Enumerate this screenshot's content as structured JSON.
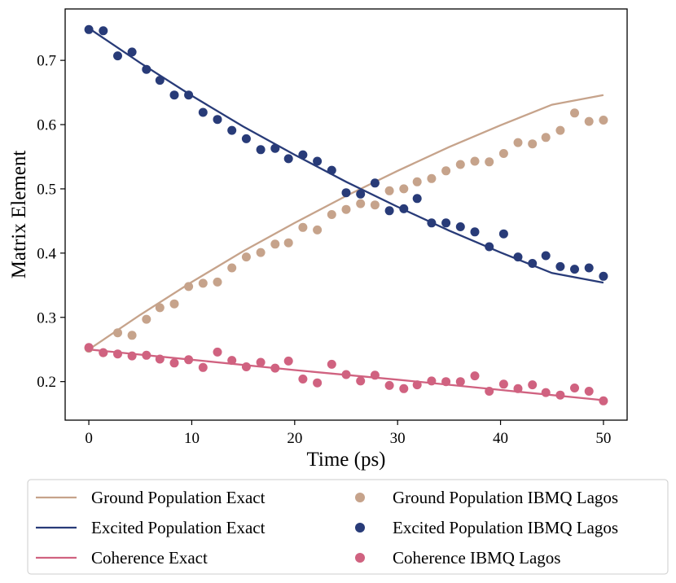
{
  "chart_data": {
    "type": "line",
    "title": "",
    "xlabel": "Time (ps)",
    "ylabel": "Matrix Element",
    "xlim": [
      -2.3,
      52.3
    ],
    "ylim": [
      0.14,
      0.78
    ],
    "xticks": [
      0,
      10,
      20,
      30,
      40,
      50
    ],
    "yticks": [
      0.2,
      0.3,
      0.4,
      0.5,
      0.6,
      0.7
    ],
    "xtick_labels": [
      "0",
      "10",
      "20",
      "30",
      "40",
      "50"
    ],
    "ytick_labels": [
      "0.2",
      "0.3",
      "0.4",
      "0.5",
      "0.6",
      "0.7"
    ],
    "grid": false,
    "legend_position": "below-plot, 2 columns",
    "colors": {
      "ground": "#c6a38b",
      "excited": "#283b78",
      "coherence": "#d06280"
    },
    "lines": [
      {
        "name": "Ground Population Exact",
        "color": "#c6a38b",
        "x": [
          0,
          5,
          10,
          15,
          20,
          25,
          30,
          35,
          40,
          45,
          50
        ],
        "y": [
          0.25,
          0.304,
          0.355,
          0.403,
          0.447,
          0.489,
          0.528,
          0.565,
          0.599,
          0.631,
          0.646
        ]
      },
      {
        "name": "Excited Population Exact",
        "color": "#283b78",
        "x": [
          0,
          5,
          10,
          15,
          20,
          25,
          30,
          35,
          40,
          45,
          50
        ],
        "y": [
          0.75,
          0.696,
          0.645,
          0.597,
          0.553,
          0.511,
          0.472,
          0.435,
          0.401,
          0.369,
          0.354
        ]
      },
      {
        "name": "Coherence Exact",
        "color": "#d06280",
        "x": [
          0,
          10,
          20,
          30,
          40,
          50
        ],
        "y": [
          0.25,
          0.234,
          0.218,
          0.203,
          0.187,
          0.171
        ]
      }
    ],
    "scatter": [
      {
        "name": "Ground Population IBMQ Lagos",
        "color": "#c6a38b",
        "x": [
          0,
          1.4,
          2.8,
          4.2,
          5.6,
          6.9,
          8.3,
          9.7,
          11.1,
          12.5,
          13.9,
          15.3,
          16.7,
          18.1,
          19.4,
          20.8,
          22.2,
          23.6,
          25,
          26.4,
          27.8,
          29.2,
          30.6,
          31.9,
          33.3,
          34.7,
          36.1,
          37.5,
          38.9,
          40.3,
          41.7,
          43.1,
          44.4,
          45.8,
          47.2,
          48.6,
          50
        ],
        "y": [
          0.252,
          0.245,
          0.276,
          0.272,
          0.297,
          0.315,
          0.321,
          0.348,
          0.353,
          0.355,
          0.377,
          0.394,
          0.401,
          0.414,
          0.416,
          0.44,
          0.436,
          0.46,
          0.468,
          0.477,
          0.475,
          0.497,
          0.5,
          0.511,
          0.516,
          0.528,
          0.538,
          0.543,
          0.542,
          0.555,
          0.572,
          0.57,
          0.58,
          0.591,
          0.618,
          0.605,
          0.607
        ]
      },
      {
        "name": "Excited Population IBMQ Lagos",
        "color": "#283b78",
        "x": [
          0,
          1.4,
          2.8,
          4.2,
          5.6,
          6.9,
          8.3,
          9.7,
          11.1,
          12.5,
          13.9,
          15.3,
          16.7,
          18.1,
          19.4,
          20.8,
          22.2,
          23.6,
          25,
          26.4,
          27.8,
          29.2,
          30.6,
          31.9,
          33.3,
          34.7,
          36.1,
          37.5,
          38.9,
          40.3,
          41.7,
          43.1,
          44.4,
          45.8,
          47.2,
          48.6,
          50
        ],
        "y": [
          0.748,
          0.746,
          0.707,
          0.713,
          0.686,
          0.669,
          0.646,
          0.646,
          0.619,
          0.608,
          0.591,
          0.578,
          0.561,
          0.563,
          0.547,
          0.553,
          0.543,
          0.529,
          0.494,
          0.492,
          0.509,
          0.466,
          0.469,
          0.485,
          0.447,
          0.447,
          0.441,
          0.433,
          0.41,
          0.43,
          0.394,
          0.384,
          0.396,
          0.379,
          0.375,
          0.377,
          0.364
        ]
      },
      {
        "name": "Coherence IBMQ Lagos",
        "color": "#d06280",
        "x": [
          0,
          1.4,
          2.8,
          4.2,
          5.6,
          6.9,
          8.3,
          9.7,
          11.1,
          12.5,
          13.9,
          15.3,
          16.7,
          18.1,
          19.4,
          20.8,
          22.2,
          23.6,
          25,
          26.4,
          27.8,
          29.2,
          30.6,
          31.9,
          33.3,
          34.7,
          36.1,
          37.5,
          38.9,
          40.3,
          41.7,
          43.1,
          44.4,
          45.8,
          47.2,
          48.6,
          50
        ],
        "y": [
          0.253,
          0.245,
          0.243,
          0.24,
          0.241,
          0.235,
          0.229,
          0.234,
          0.222,
          0.246,
          0.233,
          0.223,
          0.23,
          0.221,
          0.232,
          0.204,
          0.198,
          0.227,
          0.211,
          0.201,
          0.21,
          0.194,
          0.189,
          0.195,
          0.201,
          0.2,
          0.2,
          0.209,
          0.185,
          0.196,
          0.189,
          0.195,
          0.183,
          0.179,
          0.19,
          0.185,
          0.17
        ]
      }
    ],
    "legend": [
      {
        "label": "Ground Population Exact",
        "kind": "line",
        "color": "#c6a38b"
      },
      {
        "label": "Excited Population Exact",
        "kind": "line",
        "color": "#283b78"
      },
      {
        "label": "Coherence Exact",
        "kind": "line",
        "color": "#d06280"
      },
      {
        "label": "Ground Population IBMQ Lagos",
        "kind": "marker",
        "color": "#c6a38b"
      },
      {
        "label": "Excited Population IBMQ Lagos",
        "kind": "marker",
        "color": "#283b78"
      },
      {
        "label": "Coherence IBMQ Lagos",
        "kind": "marker",
        "color": "#d06280"
      }
    ]
  }
}
